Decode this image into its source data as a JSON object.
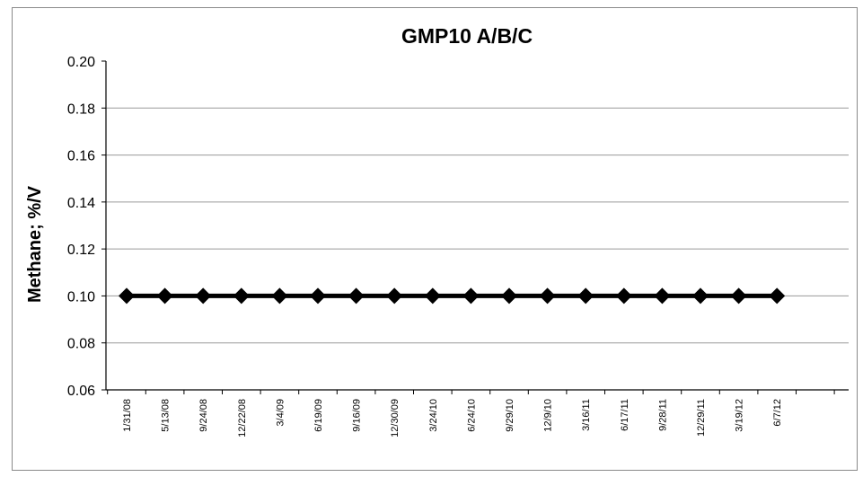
{
  "chart_data": {
    "type": "line",
    "title": "GMP10 A/B/C",
    "ylabel": "Methane; %/V",
    "xlabel": "",
    "ylim": [
      0.06,
      0.2
    ],
    "yticks": [
      "0.20",
      "0.18",
      "0.16",
      "0.14",
      "0.12",
      "0.10",
      "0.08",
      "0.06"
    ],
    "grid": true,
    "legend": "none",
    "categories": [
      "1/31/08",
      "5/13/08",
      "9/24/08",
      "12/22/08",
      "3/4/09",
      "6/19/09",
      "9/16/09",
      "12/30/09",
      "3/24/10",
      "6/24/10",
      "9/29/10",
      "12/9/10",
      "3/16/11",
      "6/17/11",
      "9/28/11",
      "12/29/11",
      "3/19/12",
      "6/7/12"
    ],
    "series": [
      {
        "values": [
          0.1,
          0.1,
          0.1,
          0.1,
          0.1,
          0.1,
          0.1,
          0.1,
          0.1,
          0.1,
          0.1,
          0.1,
          0.1,
          0.1,
          0.1,
          0.1,
          0.1,
          0.1
        ],
        "color": "#000000",
        "marker": "diamond"
      }
    ]
  }
}
